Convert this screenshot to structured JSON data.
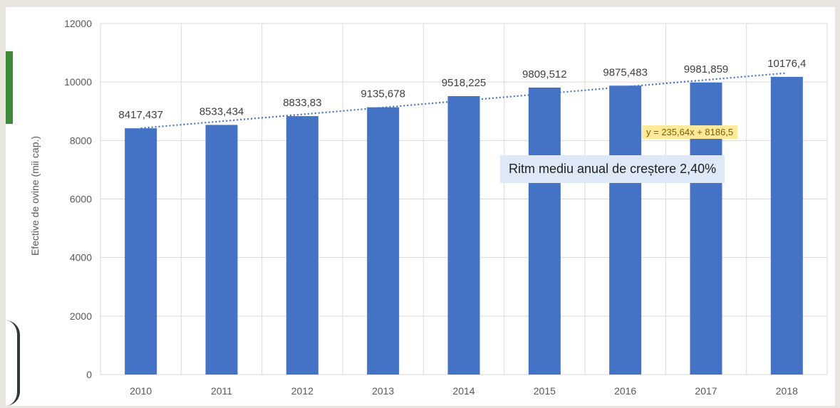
{
  "chart_data": {
    "type": "bar",
    "ylabel": "Efective de ovine (mii cap.)",
    "xlabel": "",
    "categories": [
      "2010",
      "2011",
      "2012",
      "2013",
      "2014",
      "2015",
      "2016",
      "2017",
      "2018"
    ],
    "values": [
      8417.437,
      8533.434,
      8833.83,
      9135.678,
      9518.225,
      9809.512,
      9875.483,
      9981.859,
      10176.4
    ],
    "data_labels": [
      "8417,437",
      "8533,434",
      "8833,83",
      "9135,678",
      "9518,225",
      "9809,512",
      "9875,483",
      "9981,859",
      "10176,4"
    ],
    "ylim": [
      0,
      12000
    ],
    "yticks": [
      "0",
      "2000",
      "4000",
      "6000",
      "8000",
      "10000",
      "12000"
    ],
    "grid": true,
    "bar_color": "#4472c4",
    "trendline": {
      "style": "dotted",
      "color": "#4472c4",
      "slope": 235.64,
      "intercept": 8186.5,
      "equation": "y = 235,64x + 8186,5"
    },
    "annotation": "Ritm mediu anual de creștere 2,40%"
  }
}
